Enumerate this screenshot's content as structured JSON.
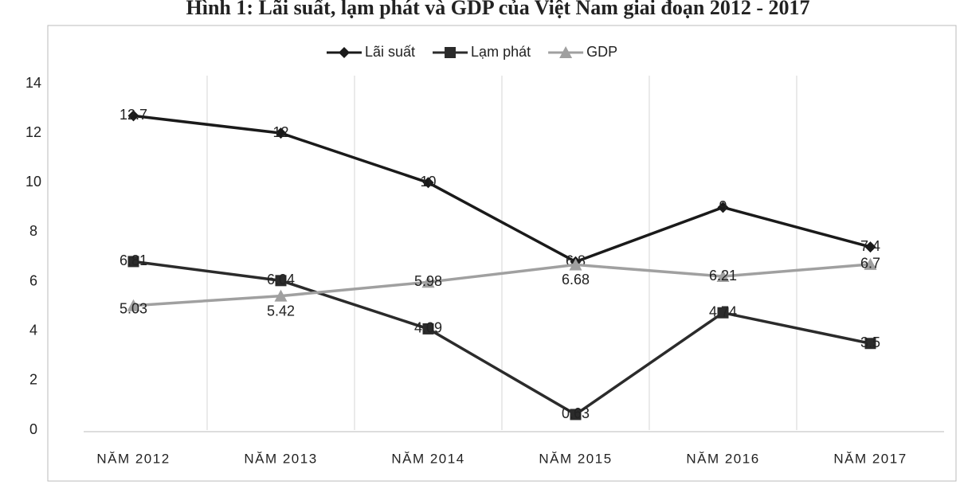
{
  "chart_data": {
    "type": "line",
    "title": "Hình 1: Lãi suất, lạm phát và GDP của Việt Nam giai đoạn 2012 - 2017",
    "categories": [
      "NĂM 2012",
      "NĂM 2013",
      "NĂM 2014",
      "NĂM 2015",
      "NĂM 2016",
      "NĂM 2017"
    ],
    "series": [
      {
        "name": "Lãi suất",
        "color": "#1a1a1a",
        "marker": "diamond",
        "values": [
          12.7,
          12,
          10,
          6.8,
          9,
          7.4
        ]
      },
      {
        "name": "Lạm phát",
        "color": "#2b2b2b",
        "marker": "square",
        "values": [
          6.81,
          6.04,
          4.09,
          0.63,
          4.74,
          3.5
        ]
      },
      {
        "name": "GDP",
        "color": "#a0a0a0",
        "marker": "triangle",
        "values": [
          5.03,
          5.42,
          5.98,
          6.68,
          6.21,
          6.7
        ]
      }
    ],
    "ylim": [
      0,
      14
    ],
    "yticks": [
      0,
      2,
      4,
      6,
      8,
      10,
      12,
      14
    ],
    "category_grid": true,
    "legend": "top",
    "data_labels": true
  }
}
